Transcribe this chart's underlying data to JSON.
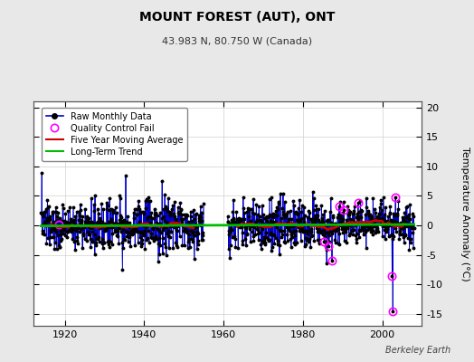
{
  "title": "MOUNT FOREST (AUT), ONT",
  "subtitle": "43.983 N, 80.750 W (Canada)",
  "ylabel": "Temperature Anomaly (°C)",
  "credit": "Berkeley Earth",
  "year_start": 1914,
  "year_end": 2008,
  "gap_start": 1955,
  "gap_end": 1961,
  "ylim": [
    -17,
    21
  ],
  "yticks": [
    -15,
    -10,
    -5,
    0,
    5,
    10,
    15,
    20
  ],
  "xticks": [
    1920,
    1940,
    1960,
    1980,
    2000
  ],
  "bg_color": "#e8e8e8",
  "plot_bg_color": "#ffffff",
  "line_color": "#0000cc",
  "marker_color": "#000000",
  "mavg_color": "#cc0000",
  "trend_color": "#00bb00",
  "qc_color": "#ff00ff",
  "seed": 137,
  "noise_std": 2.0,
  "outlier1_year": 2002.5,
  "outlier1_val": -8.5,
  "outlier2_year": 2002.7,
  "outlier2_val": -14.5
}
